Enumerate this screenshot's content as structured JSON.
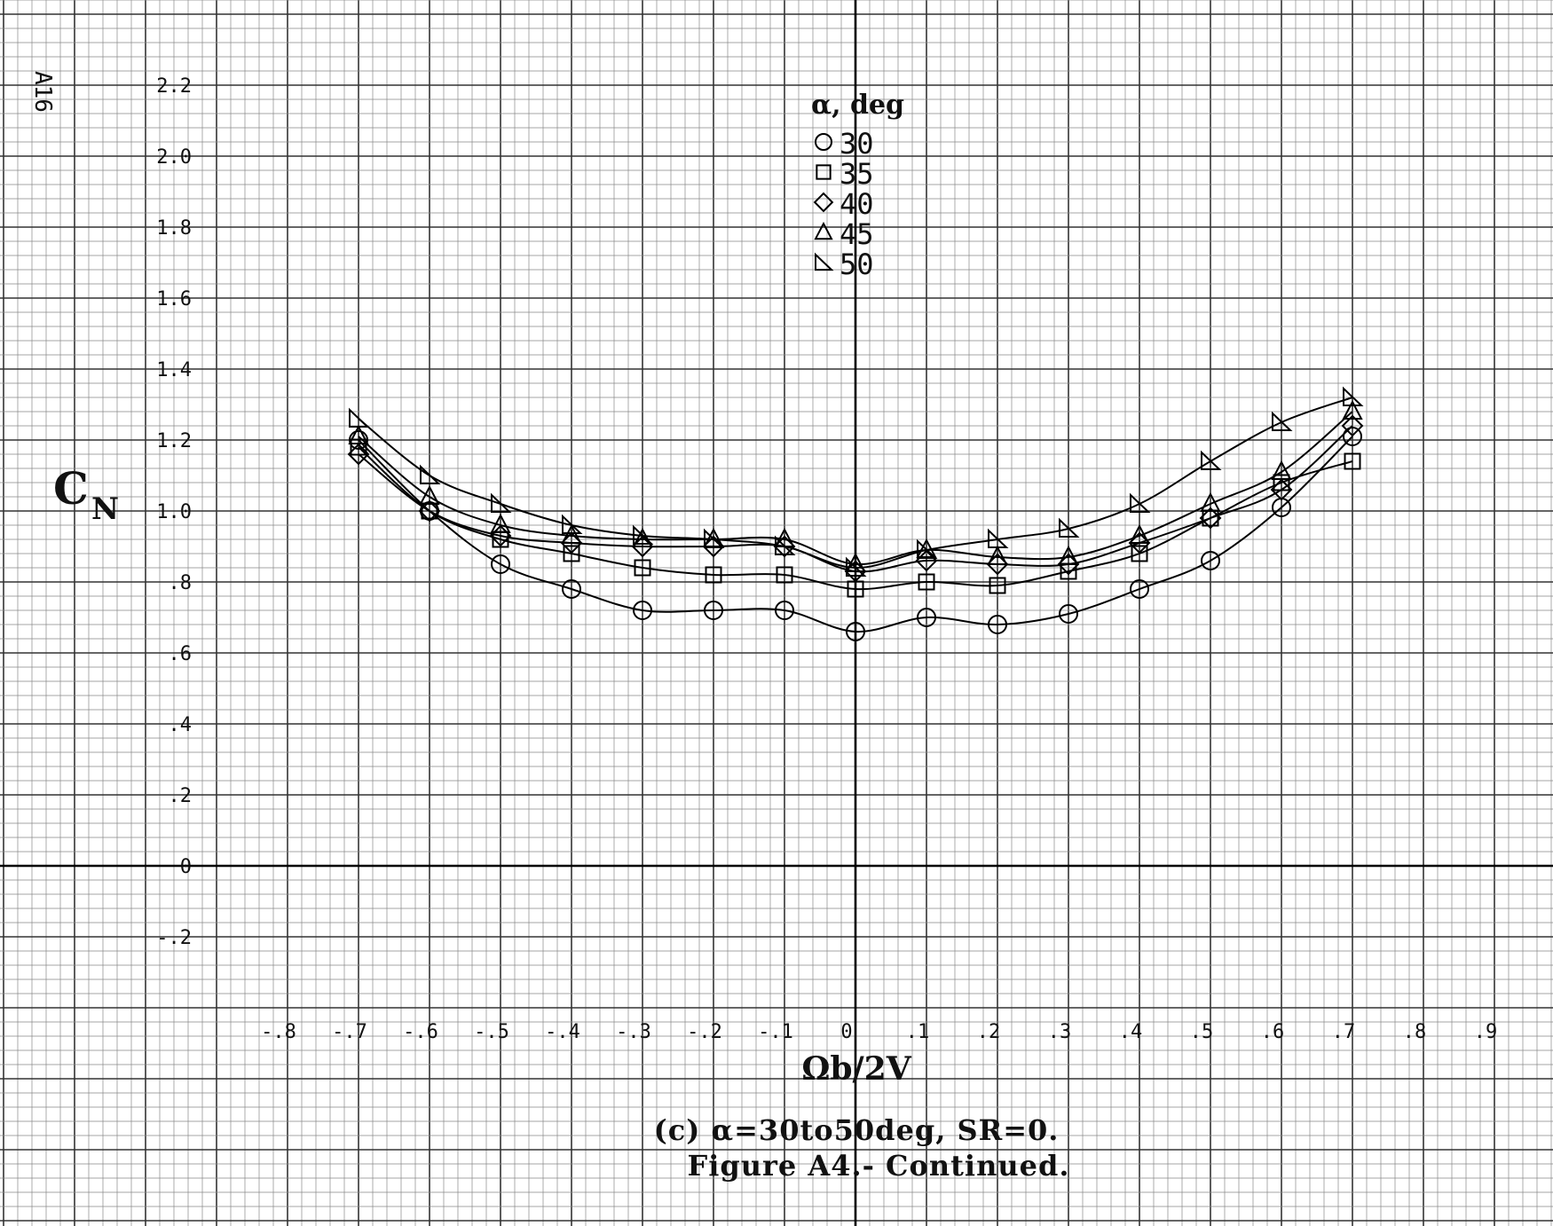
{
  "page_number": "A16",
  "chart_data": {
    "type": "line",
    "ylabel_main": "C",
    "ylabel_sub": "N",
    "xlabel": "Ωb/2V",
    "caption_line1": "(c) α=30to50deg, SR=0.",
    "caption_line2": "Figure A4.- Continued.",
    "legend_title": "α, deg",
    "xlim": [
      -0.8,
      0.9
    ],
    "ylim": [
      -0.2,
      2.2
    ],
    "x_ticks": [
      {
        "v": -0.8,
        "label": "-.8"
      },
      {
        "v": -0.7,
        "label": "-.7"
      },
      {
        "v": -0.6,
        "label": "-.6"
      },
      {
        "v": -0.5,
        "label": "-.5"
      },
      {
        "v": -0.4,
        "label": "-.4"
      },
      {
        "v": -0.3,
        "label": "-.3"
      },
      {
        "v": -0.2,
        "label": "-.2"
      },
      {
        "v": -0.1,
        "label": "-.1"
      },
      {
        "v": 0.0,
        "label": "0"
      },
      {
        "v": 0.1,
        "label": ".1"
      },
      {
        "v": 0.2,
        "label": ".2"
      },
      {
        "v": 0.3,
        "label": ".3"
      },
      {
        "v": 0.4,
        "label": ".4"
      },
      {
        "v": 0.5,
        "label": ".5"
      },
      {
        "v": 0.6,
        "label": ".6"
      },
      {
        "v": 0.7,
        "label": ".7"
      },
      {
        "v": 0.8,
        "label": ".8"
      },
      {
        "v": 0.9,
        "label": ".9"
      }
    ],
    "y_ticks": [
      {
        "v": 2.2,
        "label": "2.2"
      },
      {
        "v": 2.0,
        "label": "2.0"
      },
      {
        "v": 1.8,
        "label": "1.8"
      },
      {
        "v": 1.6,
        "label": "1.6"
      },
      {
        "v": 1.4,
        "label": "1.4"
      },
      {
        "v": 1.2,
        "label": "1.2"
      },
      {
        "v": 1.0,
        "label": "1.0"
      },
      {
        "v": 0.8,
        "label": ".8"
      },
      {
        "v": 0.6,
        "label": ".6"
      },
      {
        "v": 0.4,
        "label": ".4"
      },
      {
        "v": 0.2,
        "label": ".2"
      },
      {
        "v": 0.0,
        "label": "0"
      },
      {
        "v": -0.2,
        "label": "-.2"
      }
    ],
    "x": [
      -0.7,
      -0.6,
      -0.5,
      -0.4,
      -0.3,
      -0.2,
      -0.1,
      0.0,
      0.1,
      0.2,
      0.3,
      0.4,
      0.5,
      0.6,
      0.7
    ],
    "series": [
      {
        "name": "30",
        "marker": "circle",
        "values": [
          1.2,
          1.0,
          0.85,
          0.78,
          0.72,
          0.72,
          0.72,
          0.66,
          0.7,
          0.68,
          0.71,
          0.78,
          0.86,
          1.01,
          1.21
        ]
      },
      {
        "name": "35",
        "marker": "square",
        "values": [
          1.18,
          1.0,
          0.92,
          0.88,
          0.84,
          0.82,
          0.82,
          0.78,
          0.8,
          0.79,
          0.83,
          0.88,
          0.98,
          1.08,
          1.14
        ]
      },
      {
        "name": "40",
        "marker": "diamond",
        "values": [
          1.16,
          1.0,
          0.93,
          0.91,
          0.9,
          0.9,
          0.9,
          0.83,
          0.86,
          0.85,
          0.85,
          0.91,
          0.98,
          1.06,
          1.24
        ]
      },
      {
        "name": "45",
        "marker": "triangle",
        "values": [
          1.21,
          1.04,
          0.96,
          0.93,
          0.92,
          0.92,
          0.92,
          0.85,
          0.89,
          0.87,
          0.87,
          0.93,
          1.02,
          1.11,
          1.28
        ]
      },
      {
        "name": "50",
        "marker": "right-triangle",
        "values": [
          1.26,
          1.1,
          1.02,
          0.96,
          0.93,
          0.92,
          0.9,
          0.84,
          0.89,
          0.92,
          0.95,
          1.02,
          1.14,
          1.25,
          1.32
        ]
      }
    ],
    "grid": true
  }
}
